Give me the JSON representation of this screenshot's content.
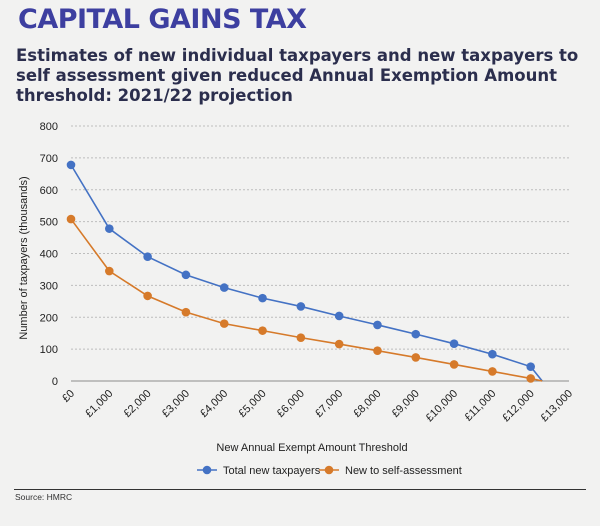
{
  "header": {
    "title": "CAPITAL GAINS TAX",
    "subtitle": "Estimates of new individual taxpayers and new taxpayers to self assessment given reduced Annual Exemption Amount threshold: 2021/22 projection"
  },
  "footer": {
    "source": "Source: HMRC"
  },
  "colors": {
    "total": "#4472c4",
    "self": "#d67a2a",
    "title": "#3d3fa0",
    "grid": "#bdbdbd"
  },
  "chart_data": {
    "type": "line",
    "xlabel": "New Annual Exempt Amount Threshold",
    "ylabel": "Number of taxpayers (thousands)",
    "ylim": [
      0,
      800
    ],
    "yticks": [
      "0",
      "100",
      "200",
      "300",
      "400",
      "500",
      "600",
      "700",
      "800"
    ],
    "categories": [
      "£0",
      "£1,000",
      "£2,000",
      "£3,000",
      "£4,000",
      "£5,000",
      "£6,000",
      "£7,000",
      "£8,000",
      "£9,000",
      "£10,000",
      "£11,000",
      "£12,000",
      "£13,000"
    ],
    "x_end": 12300,
    "grid": true,
    "legend": "bottom",
    "series": [
      {
        "name": "Total new taxpayers",
        "x": [
          0,
          1000,
          2000,
          3000,
          4000,
          5000,
          6000,
          7000,
          8000,
          9000,
          10000,
          11000,
          12000
        ],
        "values": [
          678,
          478,
          390,
          333,
          293,
          260,
          234,
          204,
          176,
          147,
          117,
          84,
          45
        ]
      },
      {
        "name": "New to self-assessment",
        "x": [
          0,
          1000,
          2000,
          3000,
          4000,
          5000,
          6000,
          7000,
          8000,
          9000,
          10000,
          11000,
          12000
        ],
        "values": [
          508,
          345,
          267,
          216,
          180,
          158,
          136,
          116,
          95,
          74,
          52,
          30,
          8
        ]
      }
    ]
  }
}
